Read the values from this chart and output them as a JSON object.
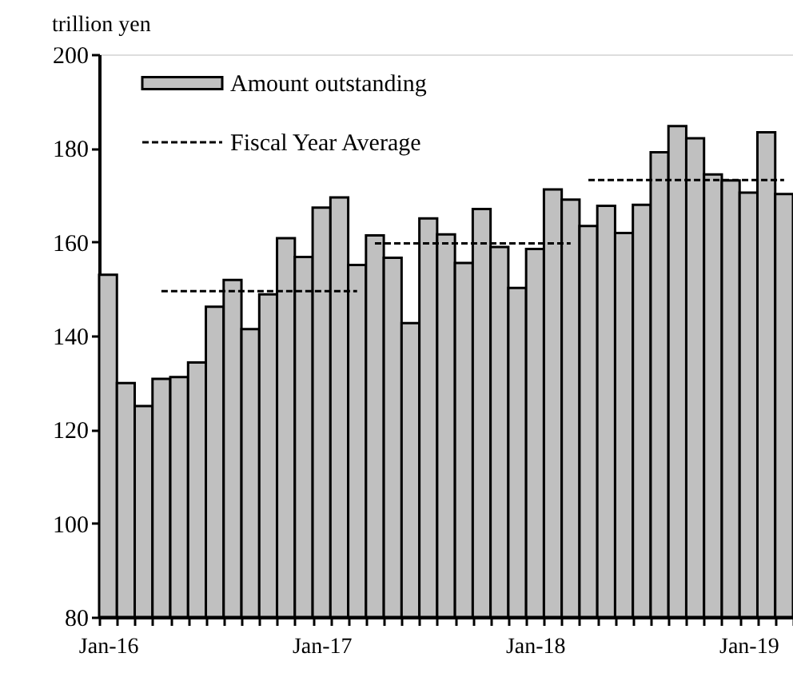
{
  "chart_data": {
    "type": "bar",
    "ylabel": "trillion yen",
    "categories": [
      "Jan-16",
      null,
      null,
      null,
      null,
      null,
      null,
      null,
      null,
      null,
      null,
      null,
      "Jan-17",
      null,
      null,
      null,
      null,
      null,
      null,
      null,
      null,
      null,
      null,
      null,
      "Jan-18",
      null,
      null,
      null,
      null,
      null,
      null,
      null,
      null,
      null,
      null,
      null,
      "Jan-19",
      null,
      null
    ],
    "series": [
      {
        "name": "Amount outstanding",
        "color": "#c0c0c0",
        "values": [
          153.0,
          129.9,
          125.0,
          130.8,
          131.2,
          134.3,
          146.2,
          151.9,
          141.4,
          148.8,
          160.8,
          156.8,
          167.3,
          169.5,
          155.1,
          161.4,
          156.6,
          142.7,
          165.0,
          161.6,
          155.5,
          167.0,
          158.9,
          150.2,
          158.5,
          171.2,
          169.0,
          163.4,
          167.7,
          161.9,
          167.9,
          179.1,
          184.7,
          182.1,
          174.4,
          173.1,
          170.5,
          183.4,
          170.2
        ]
      },
      {
        "name": "Fiscal Year Average",
        "type": "line",
        "color": "#000000",
        "line_style": "dashed",
        "values": [
          null,
          null,
          null,
          149.5,
          149.5,
          149.5,
          149.5,
          149.5,
          149.5,
          149.5,
          149.5,
          149.5,
          149.5,
          149.5,
          149.5,
          null,
          null,
          null,
          null,
          null,
          null,
          null,
          null,
          null,
          null,
          null,
          null,
          null,
          null,
          null,
          null,
          null,
          null,
          null,
          null,
          null,
          null,
          null,
          null
        ]
      },
      {
        "type": "line",
        "color": "#000000",
        "line_style": "dashed",
        "values": [
          null,
          null,
          null,
          null,
          null,
          null,
          null,
          null,
          null,
          null,
          null,
          null,
          null,
          null,
          null,
          159.7,
          159.7,
          159.7,
          159.7,
          159.7,
          159.7,
          159.7,
          159.7,
          159.7,
          159.7,
          159.7,
          159.7,
          null,
          null,
          null,
          null,
          null,
          null,
          null,
          null,
          null,
          null,
          null,
          null
        ]
      },
      {
        "type": "line",
        "color": "#000000",
        "line_style": "dashed",
        "values": [
          null,
          null,
          null,
          null,
          null,
          null,
          null,
          null,
          null,
          null,
          null,
          null,
          null,
          null,
          null,
          null,
          null,
          null,
          null,
          null,
          null,
          null,
          null,
          null,
          null,
          null,
          null,
          173.2,
          173.2,
          173.2,
          173.2,
          173.2,
          173.2,
          173.2,
          173.2,
          173.2,
          173.2,
          173.2,
          173.2
        ]
      }
    ],
    "ylim": [
      80,
      200
    ],
    "yticks": [
      80,
      100,
      120,
      140,
      160,
      180,
      200
    ],
    "legend": "top left"
  }
}
